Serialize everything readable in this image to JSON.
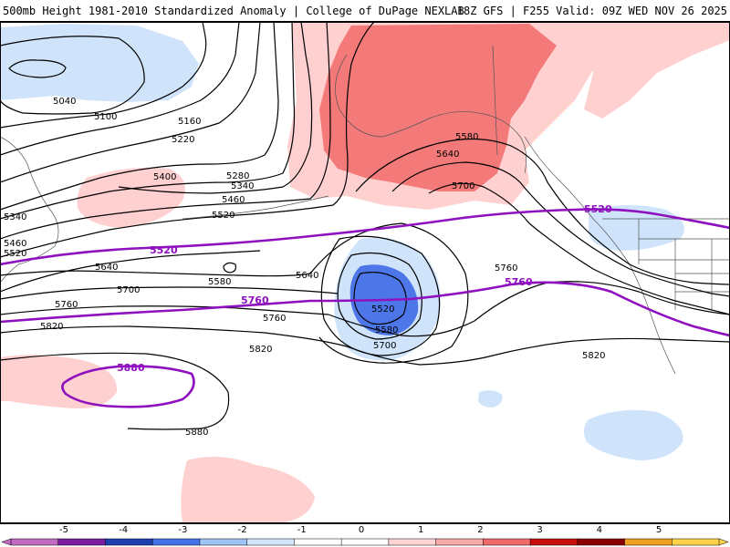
{
  "header": {
    "left_title": "500mb Height 1981-2010 Standardized Anomaly | College of DuPage NEXLAB",
    "right_title": "18Z GFS | F255 Valid: 09Z WED NOV 26 2025"
  },
  "contour_labels": [
    {
      "text": "5040"
    },
    {
      "text": "5100"
    },
    {
      "text": "5160"
    },
    {
      "text": "5220"
    },
    {
      "text": "5280"
    },
    {
      "text": "5340"
    },
    {
      "text": "5400"
    },
    {
      "text": "5460"
    },
    {
      "text": "5520"
    },
    {
      "text": "5340"
    },
    {
      "text": "5460"
    },
    {
      "text": "5520"
    },
    {
      "text": "5580"
    },
    {
      "text": "5640"
    },
    {
      "text": "5700"
    },
    {
      "text": "5640"
    },
    {
      "text": "5700"
    },
    {
      "text": "5760"
    },
    {
      "text": "5820"
    },
    {
      "text": "5760"
    },
    {
      "text": "5580"
    },
    {
      "text": "5640"
    },
    {
      "text": "5520"
    },
    {
      "text": "5580"
    },
    {
      "text": "5700"
    },
    {
      "text": "5760"
    },
    {
      "text": "5820"
    },
    {
      "text": "5820"
    },
    {
      "text": "5880"
    }
  ],
  "purple_labels": [
    {
      "text": "5520"
    },
    {
      "text": "5520"
    },
    {
      "text": "5760"
    },
    {
      "text": "5760"
    },
    {
      "text": "5880"
    }
  ],
  "legend": {
    "ticks": [
      "-5",
      "-4",
      "-3",
      "-2",
      "-1",
      "0",
      "1",
      "2",
      "3",
      "4",
      "5"
    ],
    "colors": [
      "#c26bc2",
      "#7a1fa3",
      "#1d3fb0",
      "#4472e8",
      "#9ec4f5",
      "#d3e5fa",
      "#ffffff",
      "#ffffff",
      "#ffd4d4",
      "#f7a8a8",
      "#f06a6a",
      "#c80d0d",
      "#8a0000",
      "#f0a020",
      "#ffd24a"
    ]
  },
  "colors": {
    "contour": "#000000",
    "purple": "#8f10bf",
    "positive_light": "#ffd0d0",
    "positive_med": "#f47a7a",
    "negative_light": "#cfe3fb",
    "negative_med": "#4d76e8"
  }
}
